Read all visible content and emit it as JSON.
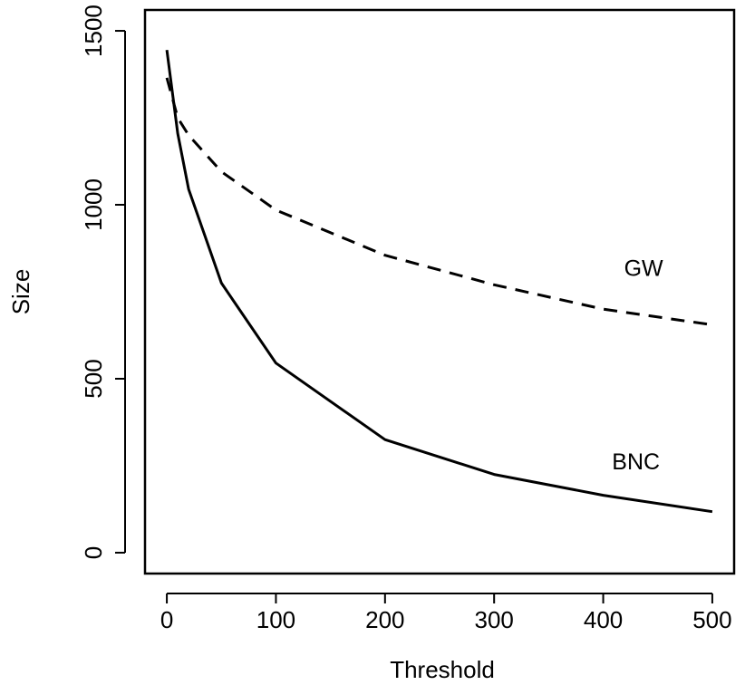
{
  "chart_data": {
    "type": "line",
    "title": "",
    "xlabel": "Threshold",
    "ylabel": "Size",
    "xlim": [
      -20,
      520
    ],
    "ylim": [
      -60,
      1560
    ],
    "x_ticks": [
      0,
      100,
      200,
      300,
      400,
      500
    ],
    "x_tick_labels": [
      "0",
      "100",
      "200",
      "300",
      "400",
      "500"
    ],
    "y_ticks": [
      0,
      500,
      1000,
      1500
    ],
    "y_tick_labels": [
      "0",
      "500",
      "1000",
      "1500"
    ],
    "grid": false,
    "legend": "none",
    "series": [
      {
        "name": "GW",
        "line_style": "dashed",
        "color": "#000000",
        "x": [
          0,
          10,
          20,
          50,
          100,
          200,
          300,
          400,
          500
        ],
        "y": [
          1365,
          1250,
          1200,
          1095,
          985,
          855,
          770,
          700,
          655
        ],
        "label_at": [
          437,
          795
        ]
      },
      {
        "name": "BNC",
        "line_style": "solid",
        "color": "#000000",
        "x": [
          0,
          10,
          20,
          50,
          100,
          200,
          300,
          400,
          500
        ],
        "y": [
          1445,
          1205,
          1045,
          775,
          545,
          325,
          225,
          165,
          118
        ],
        "label_at": [
          430,
          240
        ]
      }
    ]
  }
}
